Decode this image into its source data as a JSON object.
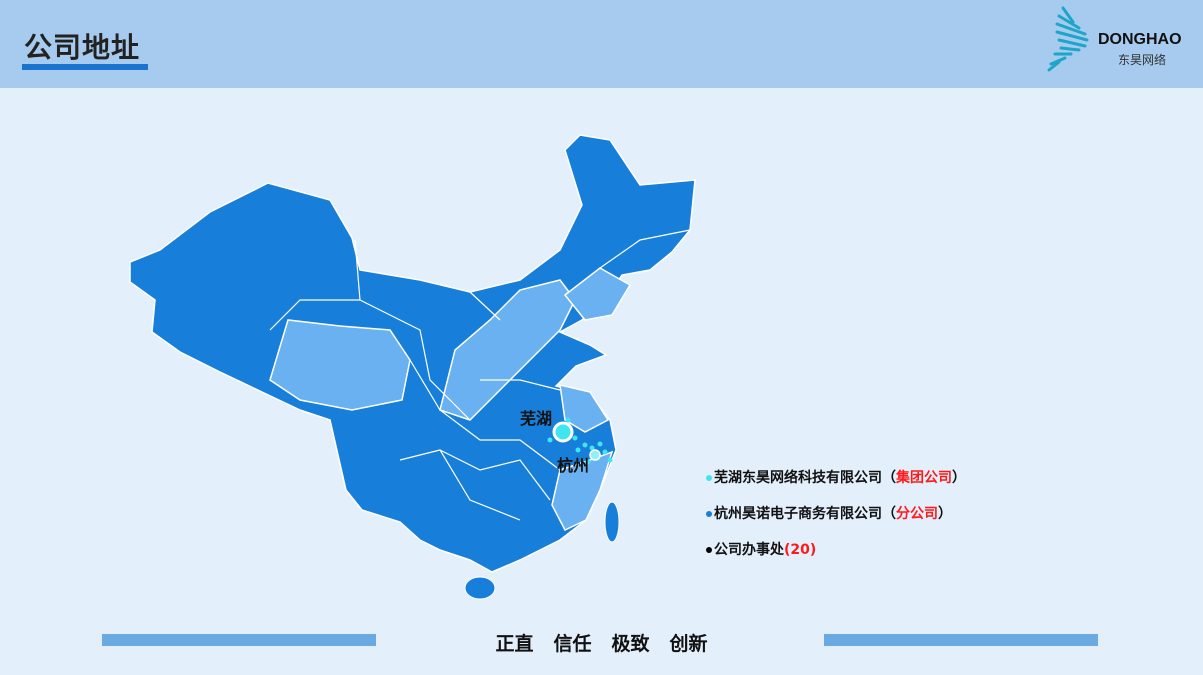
{
  "header": {
    "title": "公司地址",
    "logo_en": "DONGHAO",
    "logo_cn": "东昊网络"
  },
  "map": {
    "cities": [
      {
        "name": "芜湖"
      },
      {
        "name": "杭州"
      }
    ],
    "colors": {
      "province": "#177fd9",
      "highlight": "#69b1f0",
      "border": "#ffffff",
      "marker": "#3fe6f2"
    }
  },
  "legend": [
    {
      "text": "芜湖东昊网络科技有限公司（",
      "tag": "集团公司",
      "end": "）",
      "dot_color": "#3fe6f2"
    },
    {
      "text": "杭州昊诺电子商务有限公司（",
      "tag": "分公司",
      "end": "）",
      "dot_color": "#177fd9"
    },
    {
      "text": "公司办事处",
      "tag": "(20)",
      "end": "",
      "dot_color": "#000000"
    }
  ],
  "footer": {
    "motto": [
      "正直",
      "信任",
      "极致",
      "创新"
    ]
  }
}
